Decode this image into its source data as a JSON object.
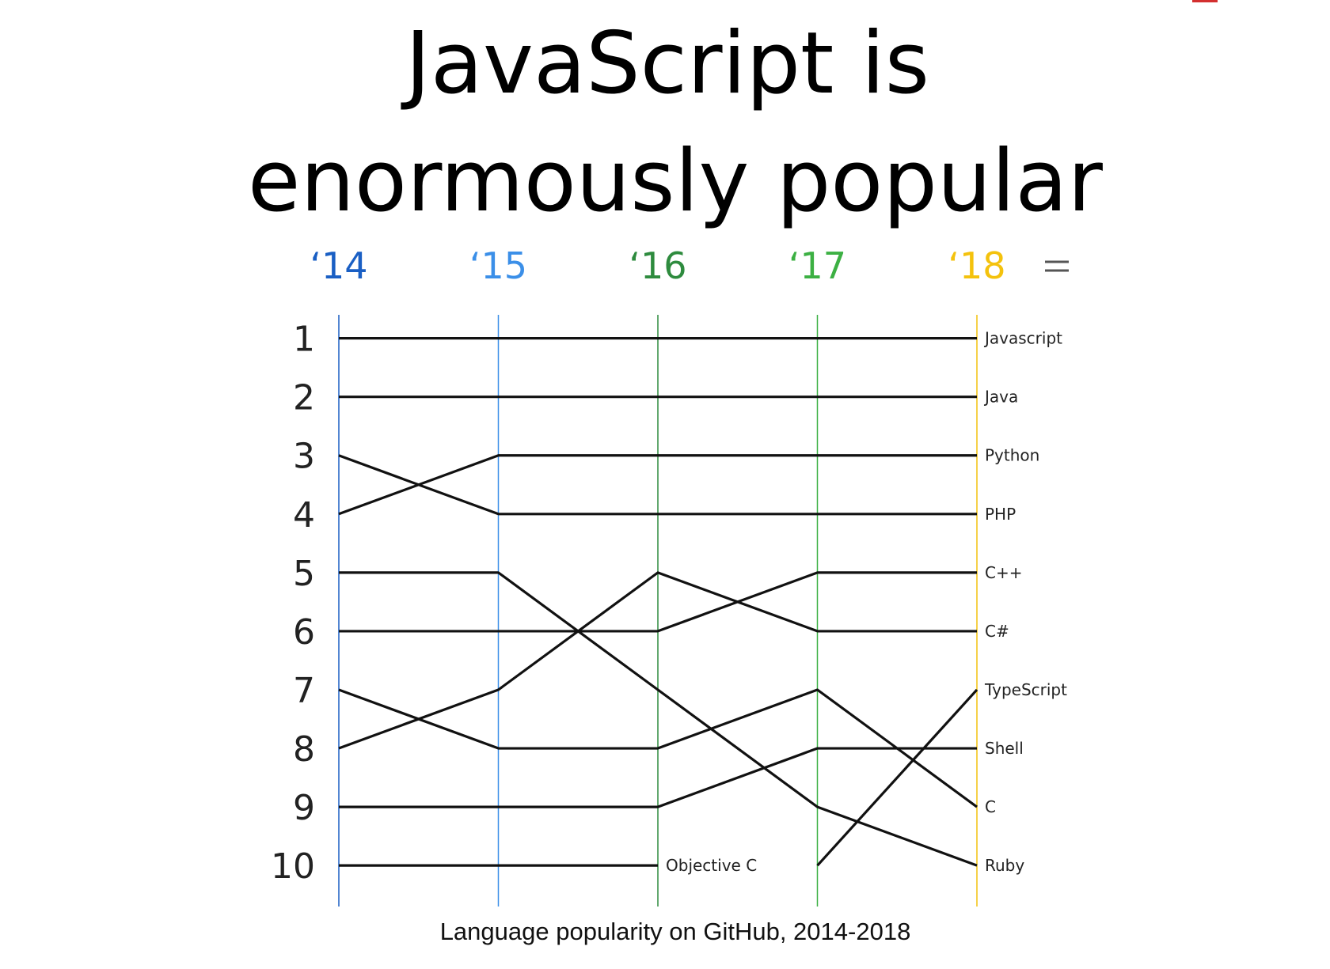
{
  "chart_data": {
    "type": "bump",
    "title": [
      "JavaScript is",
      "enormously popular"
    ],
    "caption": "Language popularity on GitHub, 2014-2018",
    "categories": [
      "‘14",
      "‘15",
      "‘16",
      "‘17",
      "‘18"
    ],
    "category_colors": [
      "#1a5fc4",
      "#3b8fe8",
      "#2e8b3e",
      "#3cb043",
      "#f4c20d"
    ],
    "ylim": [
      0.6,
      10.7
    ],
    "y_inverted": true,
    "yticks": [
      1,
      2,
      3,
      4,
      5,
      6,
      7,
      8,
      9,
      10
    ],
    "series": [
      {
        "name": "Javascript",
        "color": "#111111",
        "values": [
          1,
          1,
          1,
          1,
          1
        ]
      },
      {
        "name": "Java",
        "color": "#111111",
        "values": [
          2,
          2,
          2,
          2,
          2
        ]
      },
      {
        "name": "Python",
        "color": "#111111",
        "values": [
          4,
          3,
          3,
          3,
          3
        ]
      },
      {
        "name": "PHP",
        "color": "#111111",
        "values": [
          3,
          4,
          4,
          4,
          4
        ]
      },
      {
        "name": "C++",
        "color": "#111111",
        "values": [
          6,
          6,
          6,
          5,
          5
        ]
      },
      {
        "name": "C#",
        "color": "#111111",
        "values": [
          8,
          7,
          5,
          6,
          6
        ]
      },
      {
        "name": "TypeScript",
        "color": "#111111",
        "values": [
          null,
          null,
          null,
          10,
          7
        ]
      },
      {
        "name": "Shell",
        "color": "#111111",
        "values": [
          9,
          9,
          9,
          8,
          8
        ]
      },
      {
        "name": "C",
        "color": "#111111",
        "values": [
          7,
          8,
          8,
          7,
          9
        ]
      },
      {
        "name": "Ruby",
        "color": "#111111",
        "values": [
          5,
          5,
          7,
          9,
          10
        ]
      },
      {
        "name": "Objective C",
        "color": "#111111",
        "values": [
          10,
          10,
          10,
          null,
          null
        ]
      }
    ]
  }
}
